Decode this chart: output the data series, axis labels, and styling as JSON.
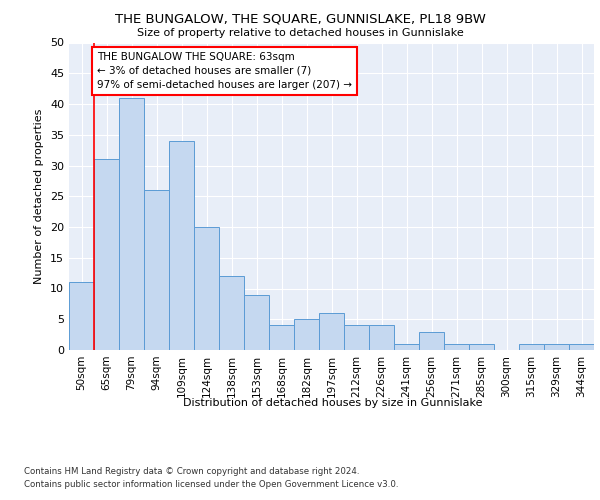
{
  "title": "THE BUNGALOW, THE SQUARE, GUNNISLAKE, PL18 9BW",
  "subtitle": "Size of property relative to detached houses in Gunnislake",
  "xlabel": "Distribution of detached houses by size in Gunnislake",
  "ylabel": "Number of detached properties",
  "categories": [
    "50sqm",
    "65sqm",
    "79sqm",
    "94sqm",
    "109sqm",
    "124sqm",
    "138sqm",
    "153sqm",
    "168sqm",
    "182sqm",
    "197sqm",
    "212sqm",
    "226sqm",
    "241sqm",
    "256sqm",
    "271sqm",
    "285sqm",
    "300sqm",
    "315sqm",
    "329sqm",
    "344sqm"
  ],
  "values": [
    11,
    31,
    41,
    26,
    34,
    20,
    12,
    9,
    4,
    5,
    6,
    4,
    4,
    1,
    3,
    1,
    1,
    0,
    1,
    1,
    1
  ],
  "bar_color": "#c5d8f0",
  "bar_edge_color": "#5b9bd5",
  "annotation_box_text": "THE BUNGALOW THE SQUARE: 63sqm\n← 3% of detached houses are smaller (7)\n97% of semi-detached houses are larger (207) →",
  "annotation_box_color": "white",
  "annotation_box_edge_color": "red",
  "annotation_line_color": "red",
  "ylim": [
    0,
    50
  ],
  "yticks": [
    0,
    5,
    10,
    15,
    20,
    25,
    30,
    35,
    40,
    45,
    50
  ],
  "plot_bg_color": "#e8eef8",
  "footer1": "Contains HM Land Registry data © Crown copyright and database right 2024.",
  "footer2": "Contains public sector information licensed under the Open Government Licence v3.0."
}
